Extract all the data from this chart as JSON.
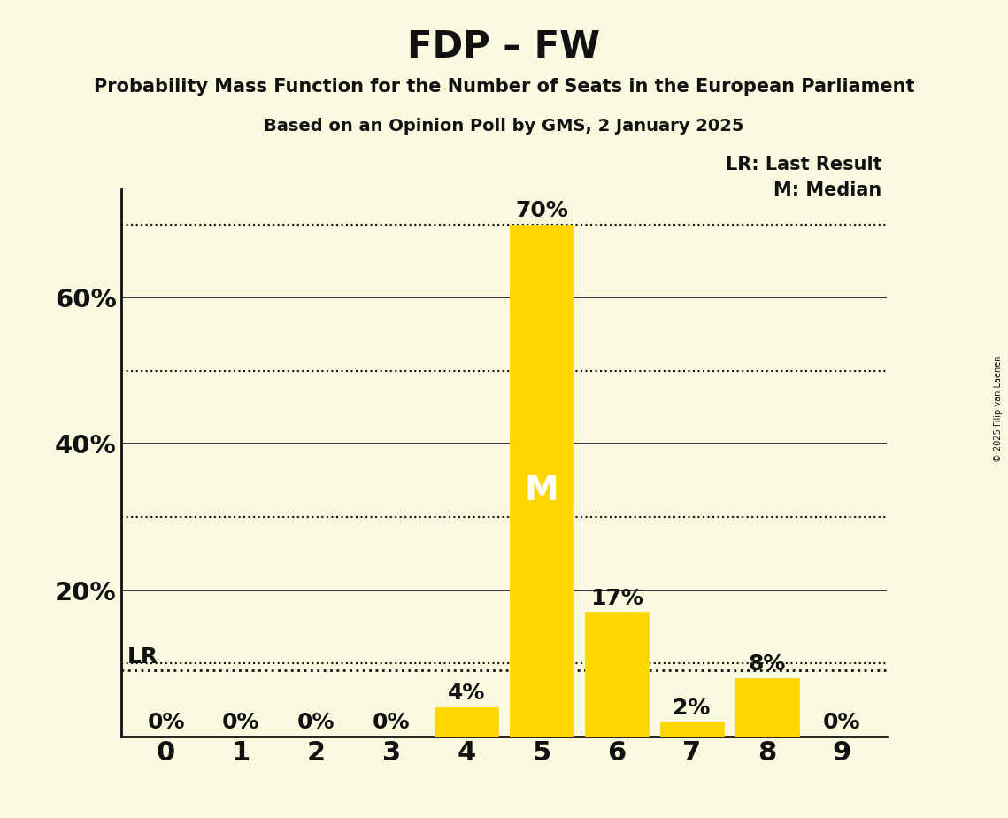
{
  "title": "FDP – FW",
  "subtitle1": "Probability Mass Function for the Number of Seats in the European Parliament",
  "subtitle2": "Based on an Opinion Poll by GMS, 2 January 2025",
  "copyright_text": "© 2025 Filip van Laenen",
  "seats": [
    0,
    1,
    2,
    3,
    4,
    5,
    6,
    7,
    8,
    9
  ],
  "probabilities": [
    0.0,
    0.0,
    0.0,
    0.0,
    0.04,
    0.7,
    0.17,
    0.02,
    0.08,
    0.0
  ],
  "bar_color": "#FFD700",
  "median_seat": 5,
  "lr_value": 0.09,
  "lr_label": "LR",
  "lr_legend": "LR: Last Result",
  "median_legend": "M: Median",
  "background_color": "#FAFAE0",
  "ylim": [
    0,
    0.75
  ],
  "ytick_positions": [
    0.2,
    0.4,
    0.6
  ],
  "ytick_labels": [
    "20%",
    "40%",
    "60%"
  ],
  "grid_dotted_at": [
    0.1,
    0.3,
    0.5,
    0.7
  ],
  "grid_solid_at": [
    0.2,
    0.4,
    0.6
  ],
  "text_color": "#111111",
  "font_family": "DejaVu Sans",
  "title_fontsize": 30,
  "subtitle1_fontsize": 15,
  "subtitle2_fontsize": 14,
  "bar_label_fontsize": 18,
  "ytick_fontsize": 21,
  "xtick_fontsize": 22,
  "legend_fontsize": 15,
  "lr_label_fontsize": 18,
  "median_label_fontsize": 28
}
